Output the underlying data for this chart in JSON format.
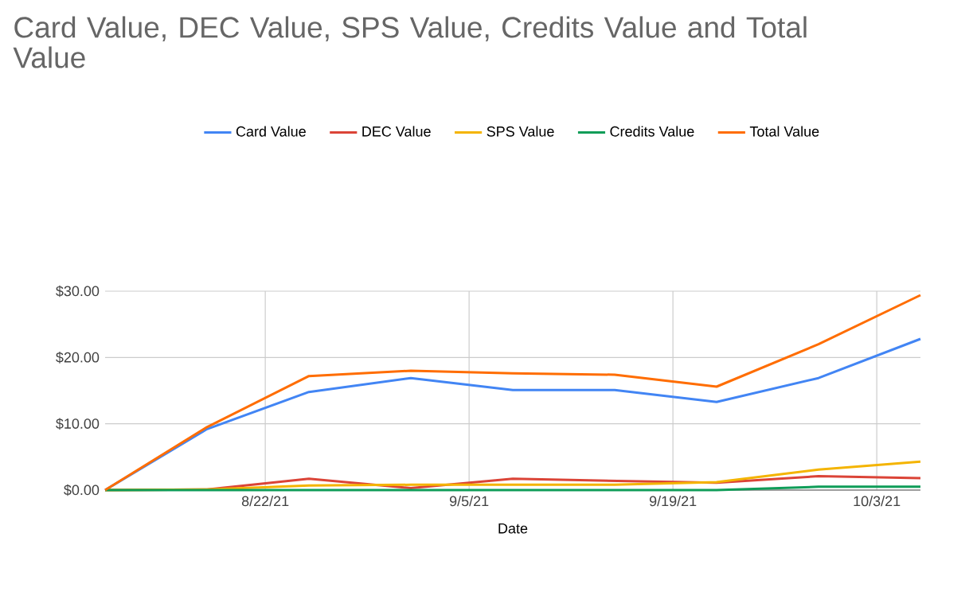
{
  "chart_data": {
    "type": "line",
    "title": "Card Value, DEC Value, SPS Value, Credits Value and Total Value",
    "xlabel": "Date",
    "x": [
      "2021-08-11",
      "2021-08-18",
      "2021-08-25",
      "2021-09-01",
      "2021-09-08",
      "2021-09-15",
      "2021-09-22",
      "2021-09-29",
      "2021-10-06"
    ],
    "series": [
      {
        "name": "Card Value",
        "color": "#4285f4",
        "values": [
          0,
          9.2,
          14.8,
          16.9,
          15.1,
          15.1,
          13.3,
          16.9,
          22.8
        ]
      },
      {
        "name": "DEC Value",
        "color": "#db4437",
        "values": [
          0,
          0.1,
          1.7,
          0.3,
          1.7,
          1.4,
          1.1,
          2.1,
          1.8
        ]
      },
      {
        "name": "SPS Value",
        "color": "#f4b400",
        "values": [
          0,
          0.1,
          0.7,
          0.8,
          0.8,
          0.8,
          1.2,
          3.1,
          4.3
        ]
      },
      {
        "name": "Credits Value",
        "color": "#0f9d58",
        "values": [
          0,
          0,
          0,
          0,
          0,
          0,
          0,
          0.5,
          0.5
        ]
      },
      {
        "name": "Total Value",
        "color": "#ff6d01",
        "values": [
          0,
          9.5,
          17.2,
          18.0,
          17.6,
          17.4,
          15.6,
          22.0,
          29.4
        ]
      }
    ],
    "xlim": [
      "2021-08-11",
      "2021-10-06"
    ],
    "xticks": [
      {
        "value": "2021-08-22",
        "label": "8/22/21"
      },
      {
        "value": "2021-09-05",
        "label": "9/5/21"
      },
      {
        "value": "2021-09-19",
        "label": "9/19/21"
      },
      {
        "value": "2021-10-03",
        "label": "10/3/21"
      }
    ],
    "ylim": [
      0,
      30
    ],
    "yticks": [
      {
        "value": 0,
        "label": "$0.00"
      },
      {
        "value": 10,
        "label": "$10.00"
      },
      {
        "value": 20,
        "label": "$20.00"
      },
      {
        "value": 30,
        "label": "$30.00"
      }
    ],
    "grid": true,
    "legend": "top",
    "marker": "none",
    "line_style": "solid"
  }
}
